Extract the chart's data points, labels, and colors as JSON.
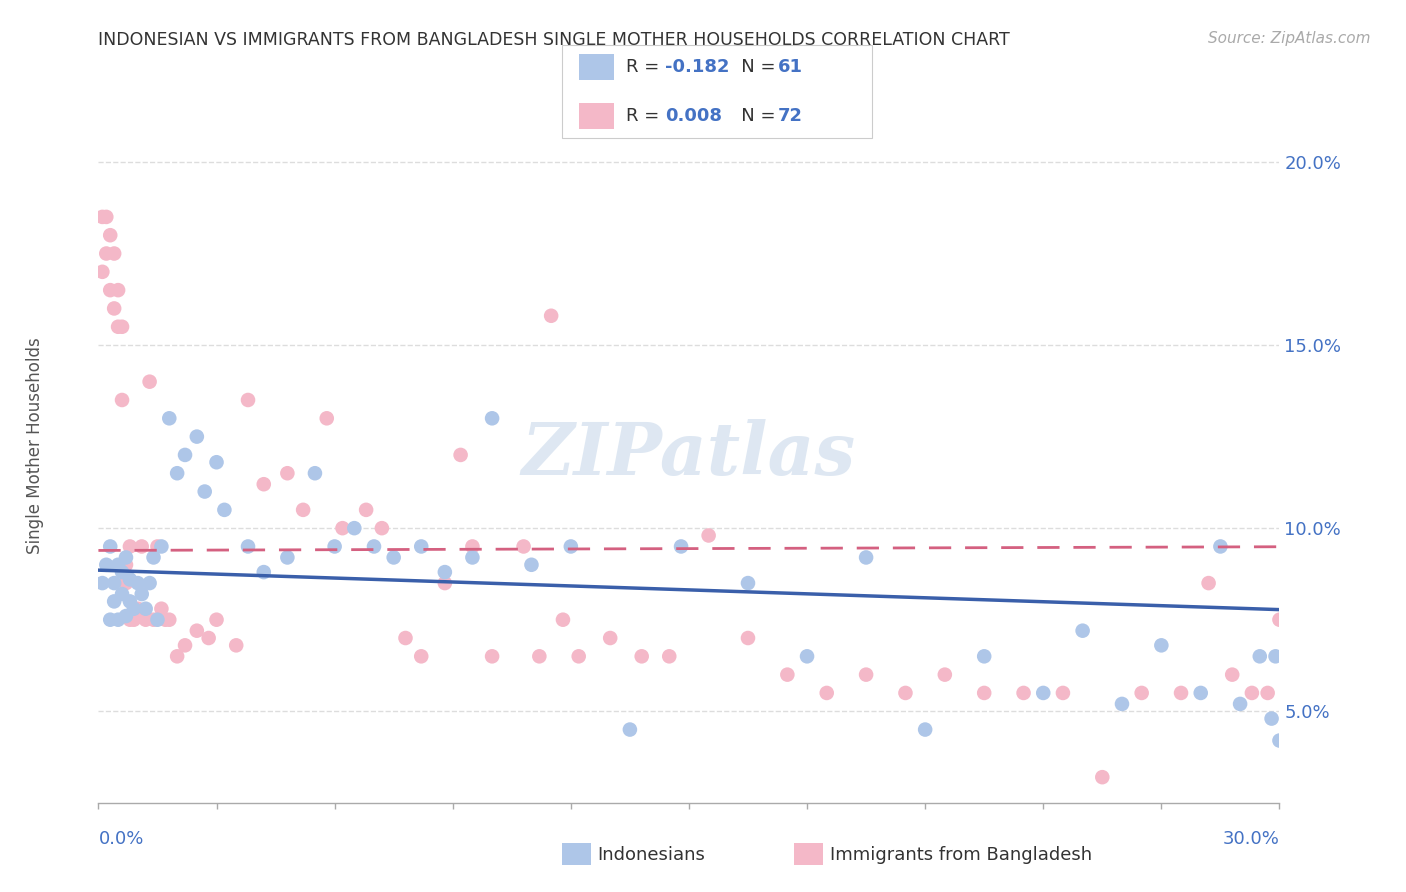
{
  "title": "INDONESIAN VS IMMIGRANTS FROM BANGLADESH SINGLE MOTHER HOUSEHOLDS CORRELATION CHART",
  "source": "Source: ZipAtlas.com",
  "ylabel": "Single Mother Households",
  "xmin": 0.0,
  "xmax": 0.3,
  "ymin": 0.025,
  "ymax": 0.215,
  "yticks": [
    0.05,
    0.1,
    0.15,
    0.2
  ],
  "ytick_labels": [
    "5.0%",
    "10.0%",
    "15.0%",
    "20.0%"
  ],
  "watermark": "ZIPatlas",
  "indonesian_color": "#aec6e8",
  "bangladeshi_color": "#f4b8c8",
  "indonesian_line_color": "#3a5faa",
  "bangladeshi_line_color": "#d46080",
  "indonesian_R": -0.182,
  "bangladeshi_R": 0.008,
  "indonesian_N": 61,
  "bangladeshi_N": 72,
  "indonesian_x": [
    0.001,
    0.002,
    0.003,
    0.003,
    0.004,
    0.004,
    0.005,
    0.005,
    0.006,
    0.006,
    0.007,
    0.007,
    0.008,
    0.008,
    0.009,
    0.01,
    0.011,
    0.012,
    0.013,
    0.014,
    0.015,
    0.016,
    0.018,
    0.02,
    0.022,
    0.025,
    0.027,
    0.03,
    0.032,
    0.038,
    0.042,
    0.048,
    0.055,
    0.06,
    0.065,
    0.07,
    0.075,
    0.082,
    0.088,
    0.095,
    0.1,
    0.11,
    0.12,
    0.135,
    0.148,
    0.165,
    0.18,
    0.195,
    0.21,
    0.225,
    0.24,
    0.25,
    0.26,
    0.27,
    0.28,
    0.285,
    0.29,
    0.295,
    0.298,
    0.299,
    0.3
  ],
  "indonesian_y": [
    0.085,
    0.09,
    0.075,
    0.095,
    0.08,
    0.085,
    0.075,
    0.09,
    0.082,
    0.088,
    0.076,
    0.092,
    0.08,
    0.086,
    0.078,
    0.085,
    0.082,
    0.078,
    0.085,
    0.092,
    0.075,
    0.095,
    0.13,
    0.115,
    0.12,
    0.125,
    0.11,
    0.118,
    0.105,
    0.095,
    0.088,
    0.092,
    0.115,
    0.095,
    0.1,
    0.095,
    0.092,
    0.095,
    0.088,
    0.092,
    0.13,
    0.09,
    0.095,
    0.045,
    0.095,
    0.085,
    0.065,
    0.092,
    0.045,
    0.065,
    0.055,
    0.072,
    0.052,
    0.068,
    0.055,
    0.095,
    0.052,
    0.065,
    0.048,
    0.065,
    0.042
  ],
  "bangladeshi_x": [
    0.001,
    0.001,
    0.002,
    0.002,
    0.003,
    0.003,
    0.004,
    0.004,
    0.005,
    0.005,
    0.006,
    0.006,
    0.007,
    0.007,
    0.008,
    0.008,
    0.009,
    0.01,
    0.011,
    0.012,
    0.013,
    0.014,
    0.015,
    0.016,
    0.017,
    0.018,
    0.02,
    0.022,
    0.025,
    0.028,
    0.03,
    0.035,
    0.038,
    0.042,
    0.048,
    0.052,
    0.058,
    0.062,
    0.068,
    0.072,
    0.078,
    0.082,
    0.088,
    0.092,
    0.095,
    0.1,
    0.108,
    0.112,
    0.115,
    0.118,
    0.122,
    0.13,
    0.138,
    0.145,
    0.155,
    0.165,
    0.175,
    0.185,
    0.195,
    0.205,
    0.215,
    0.225,
    0.235,
    0.245,
    0.255,
    0.265,
    0.275,
    0.282,
    0.288,
    0.293,
    0.297,
    0.3
  ],
  "bangladeshi_y": [
    0.185,
    0.17,
    0.185,
    0.175,
    0.165,
    0.18,
    0.16,
    0.175,
    0.155,
    0.165,
    0.135,
    0.155,
    0.09,
    0.085,
    0.075,
    0.095,
    0.075,
    0.078,
    0.095,
    0.075,
    0.14,
    0.075,
    0.095,
    0.078,
    0.075,
    0.075,
    0.065,
    0.068,
    0.072,
    0.07,
    0.075,
    0.068,
    0.135,
    0.112,
    0.115,
    0.105,
    0.13,
    0.1,
    0.105,
    0.1,
    0.07,
    0.065,
    0.085,
    0.12,
    0.095,
    0.065,
    0.095,
    0.065,
    0.158,
    0.075,
    0.065,
    0.07,
    0.065,
    0.065,
    0.098,
    0.07,
    0.06,
    0.055,
    0.06,
    0.055,
    0.06,
    0.055,
    0.055,
    0.055,
    0.032,
    0.055,
    0.055,
    0.085,
    0.06,
    0.055,
    0.055,
    0.075
  ],
  "background_color": "#ffffff",
  "grid_color": "#dddddd"
}
